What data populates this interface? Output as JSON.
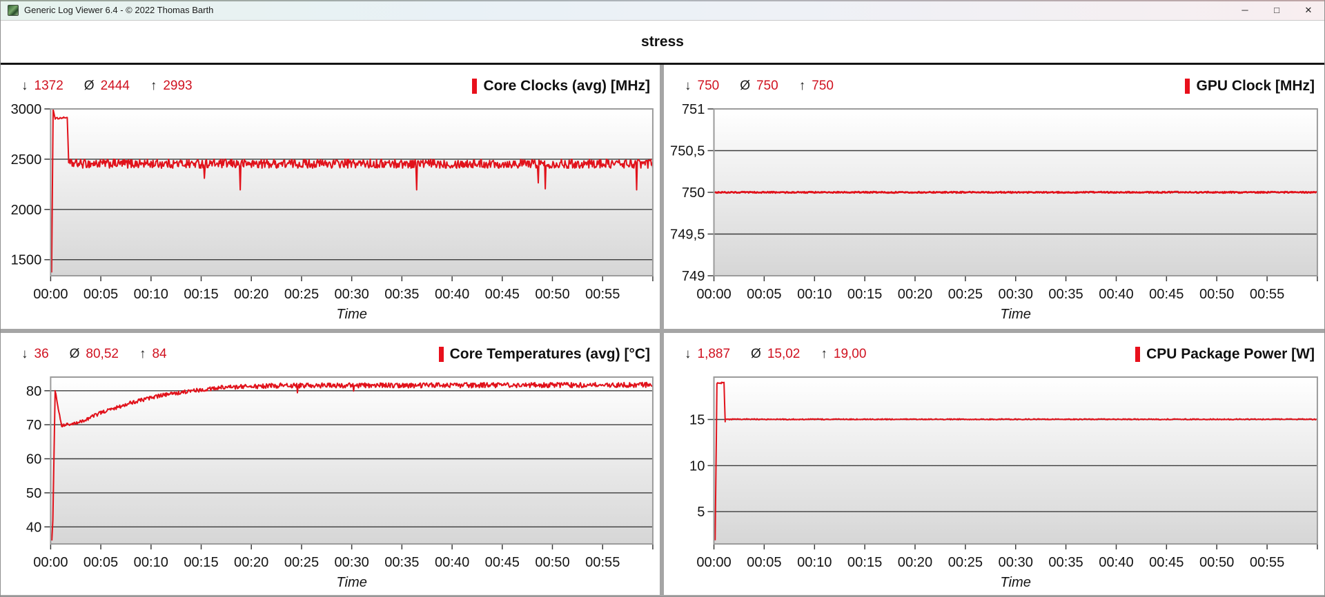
{
  "window": {
    "title": "Generic Log Viewer 6.4 - © 2022 Thomas Barth",
    "controls": {
      "minimize": "─",
      "maximize": "□",
      "close": "✕"
    }
  },
  "header": {
    "title": "stress"
  },
  "symbols": {
    "min": "↓",
    "avg": "Ø",
    "max": "↑"
  },
  "colors": {
    "series_red": "#e1121b",
    "stats_red": "#d01220",
    "gridline": "#3b3b3b",
    "plot_border": "#9b9b9b",
    "plot_bg_top": "#ffffff",
    "plot_bg_bottom": "#d6d6d6",
    "divider": "#a5a5a5"
  },
  "chart_data": [
    {
      "type": "line",
      "title": "Core Clocks (avg) [MHz]",
      "stats": {
        "min": "1372",
        "avg": "2444",
        "max": "2993"
      },
      "xlabel": "Time",
      "xlim": [
        0,
        60
      ],
      "ylim": [
        1340,
        3000
      ],
      "x_ticks": [
        {
          "t": 0,
          "label": "00:00"
        },
        {
          "t": 5,
          "label": "00:05"
        },
        {
          "t": 10,
          "label": "00:10"
        },
        {
          "t": 15,
          "label": "00:15"
        },
        {
          "t": 20,
          "label": "00:20"
        },
        {
          "t": 25,
          "label": "00:25"
        },
        {
          "t": 30,
          "label": "00:30"
        },
        {
          "t": 35,
          "label": "00:35"
        },
        {
          "t": 40,
          "label": "00:40"
        },
        {
          "t": 45,
          "label": "00:45"
        },
        {
          "t": 50,
          "label": "00:50"
        },
        {
          "t": 55,
          "label": "00:55"
        },
        {
          "t": 60,
          "label": ""
        }
      ],
      "y_ticks": [
        {
          "v": 3000,
          "label": "3000"
        },
        {
          "v": 2500,
          "label": "2500"
        },
        {
          "v": 2000,
          "label": "2000"
        },
        {
          "v": 1500,
          "label": "1500"
        }
      ],
      "grid": true,
      "legend": "none",
      "line_color": "#e1121b",
      "segments": [
        [
          0.1,
          0.1,
          1372,
          1372,
          0
        ],
        [
          0.1,
          0.25,
          1372,
          2993,
          0
        ],
        [
          0.25,
          0.45,
          2993,
          2905,
          0
        ],
        [
          0.45,
          1.65,
          2905,
          2915,
          8
        ],
        [
          1.65,
          1.8,
          2915,
          2465,
          0
        ],
        [
          1.8,
          60.0,
          2455,
          2455,
          45
        ]
      ],
      "dips": [
        [
          15.3,
          2310
        ],
        [
          18.9,
          2195
        ],
        [
          36.5,
          2195
        ],
        [
          48.6,
          2265
        ],
        [
          49.3,
          2205
        ],
        [
          58.4,
          2195
        ]
      ]
    },
    {
      "type": "line",
      "title": "GPU Clock [MHz]",
      "stats": {
        "min": "750",
        "avg": "750",
        "max": "750"
      },
      "xlabel": "Time",
      "xlim": [
        0,
        60
      ],
      "ylim": [
        749,
        751
      ],
      "x_ticks": [
        {
          "t": 0,
          "label": "00:00"
        },
        {
          "t": 5,
          "label": "00:05"
        },
        {
          "t": 10,
          "label": "00:10"
        },
        {
          "t": 15,
          "label": "00:15"
        },
        {
          "t": 20,
          "label": "00:20"
        },
        {
          "t": 25,
          "label": "00:25"
        },
        {
          "t": 30,
          "label": "00:30"
        },
        {
          "t": 35,
          "label": "00:35"
        },
        {
          "t": 40,
          "label": "00:40"
        },
        {
          "t": 45,
          "label": "00:45"
        },
        {
          "t": 50,
          "label": "00:50"
        },
        {
          "t": 55,
          "label": "00:55"
        },
        {
          "t": 60,
          "label": ""
        }
      ],
      "y_ticks": [
        {
          "v": 751,
          "label": "751"
        },
        {
          "v": 750.5,
          "label": "750,5"
        },
        {
          "v": 750,
          "label": "750"
        },
        {
          "v": 749.5,
          "label": "749,5"
        },
        {
          "v": 749,
          "label": "749"
        }
      ],
      "grid": true,
      "legend": "none",
      "line_color": "#e1121b",
      "segments": [
        [
          0.1,
          60,
          750,
          750,
          0.008
        ]
      ],
      "dips": []
    },
    {
      "type": "line",
      "title": "Core Temperatures (avg) [°C]",
      "stats": {
        "min": "36",
        "avg": "80,52",
        "max": "84"
      },
      "xlabel": "Time",
      "xlim": [
        0,
        60
      ],
      "ylim": [
        35,
        84
      ],
      "x_ticks": [
        {
          "t": 0,
          "label": "00:00"
        },
        {
          "t": 5,
          "label": "00:05"
        },
        {
          "t": 10,
          "label": "00:10"
        },
        {
          "t": 15,
          "label": "00:15"
        },
        {
          "t": 20,
          "label": "00:20"
        },
        {
          "t": 25,
          "label": "00:25"
        },
        {
          "t": 30,
          "label": "00:30"
        },
        {
          "t": 35,
          "label": "00:35"
        },
        {
          "t": 40,
          "label": "00:40"
        },
        {
          "t": 45,
          "label": "00:45"
        },
        {
          "t": 50,
          "label": "00:50"
        },
        {
          "t": 55,
          "label": "00:55"
        },
        {
          "t": 60,
          "label": ""
        }
      ],
      "y_ticks": [
        {
          "v": 80,
          "label": "80"
        },
        {
          "v": 70,
          "label": "70"
        },
        {
          "v": 60,
          "label": "60"
        },
        {
          "v": 50,
          "label": "50"
        },
        {
          "v": 40,
          "label": "40"
        }
      ],
      "grid": true,
      "legend": "none",
      "line_color": "#e1121b",
      "segments": [
        [
          0.12,
          0.12,
          36,
          36,
          0
        ],
        [
          0.12,
          0.22,
          36,
          42,
          0
        ],
        [
          0.22,
          0.45,
          42,
          80,
          0
        ],
        [
          0.45,
          0.75,
          80,
          75,
          0.3
        ],
        [
          0.75,
          1.1,
          75,
          69.8,
          0.3
        ],
        [
          1.1,
          2.6,
          69.8,
          70.4,
          0.5
        ],
        [
          2.6,
          5.0,
          70.4,
          73.5,
          0.55
        ],
        [
          5.0,
          8.0,
          73.5,
          76.5,
          0.55
        ],
        [
          8.0,
          11.0,
          76.5,
          78.6,
          0.55
        ],
        [
          11.0,
          14.0,
          78.6,
          79.9,
          0.55
        ],
        [
          14.0,
          17.0,
          79.9,
          80.9,
          0.6
        ],
        [
          17.0,
          22.0,
          81.0,
          81.4,
          0.65
        ],
        [
          22.0,
          60.0,
          81.5,
          81.7,
          0.75
        ]
      ],
      "dips": [
        [
          24.6,
          79.4
        ],
        [
          30.2,
          79.9
        ]
      ]
    },
    {
      "type": "line",
      "title": "CPU Package Power [W]",
      "stats": {
        "min": "1,887",
        "avg": "15,02",
        "max": "19,00"
      },
      "xlabel": "Time",
      "xlim": [
        0,
        60
      ],
      "ylim": [
        1.5,
        19.6
      ],
      "x_ticks": [
        {
          "t": 0,
          "label": "00:00"
        },
        {
          "t": 5,
          "label": "00:05"
        },
        {
          "t": 10,
          "label": "00:10"
        },
        {
          "t": 15,
          "label": "00:15"
        },
        {
          "t": 20,
          "label": "00:20"
        },
        {
          "t": 25,
          "label": "00:25"
        },
        {
          "t": 30,
          "label": "00:30"
        },
        {
          "t": 35,
          "label": "00:35"
        },
        {
          "t": 40,
          "label": "00:40"
        },
        {
          "t": 45,
          "label": "00:45"
        },
        {
          "t": 50,
          "label": "00:50"
        },
        {
          "t": 55,
          "label": "00:55"
        },
        {
          "t": 60,
          "label": ""
        }
      ],
      "y_ticks": [
        {
          "v": 15,
          "label": "15"
        },
        {
          "v": 10,
          "label": "10"
        },
        {
          "v": 5,
          "label": "5"
        }
      ],
      "grid": true,
      "legend": "none",
      "line_color": "#e1121b",
      "segments": [
        [
          0.12,
          0.12,
          1.887,
          1.887,
          0
        ],
        [
          0.12,
          0.3,
          1.887,
          18.8,
          0
        ],
        [
          0.3,
          1.0,
          18.9,
          19.0,
          0.08
        ],
        [
          1.0,
          1.12,
          19.0,
          14.75,
          0
        ],
        [
          1.12,
          60.0,
          15.02,
          15.02,
          0.06
        ]
      ],
      "dips": []
    }
  ]
}
